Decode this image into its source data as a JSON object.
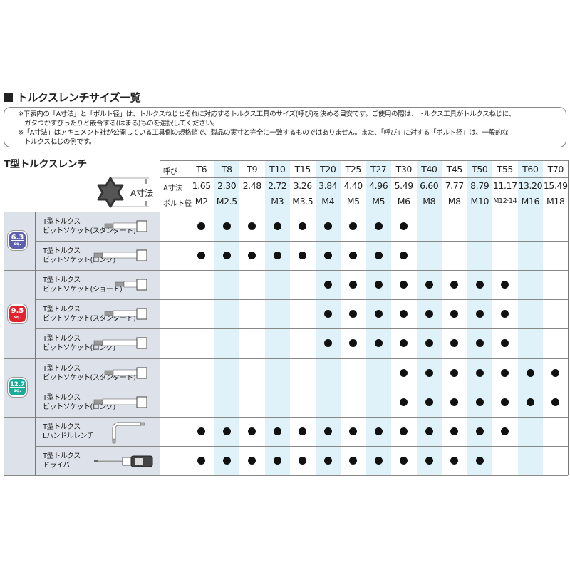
{
  "title": "トルクスレンチサイズ一覧",
  "notes": [
    "※下表内の「A寸法」と「ボルト径」は、トルクスねじとそれに対応するトルクス工具のサイズ(呼び)を決める目安です。ご使用の際は、トルクス工具がトルクスねじに、",
    "ガタつかずぴったりと嵌合する(はまる)ものを選択してください。",
    "※「A寸法」はアキュメント社が公開している工具側の規格値で、製品の実寸と完全に一致するものではありません。また、「呼び」に対する「ボルト径」は、一般的な",
    "トルクスねじの例です。"
  ],
  "subtitle": "T型トルクスレンチ",
  "diagram_label": "A寸法",
  "header": {
    "row_labels": [
      "呼び",
      "A寸法",
      "ボルト径"
    ],
    "sizes": [
      "T6",
      "T8",
      "T9",
      "T10",
      "T15",
      "T20",
      "T25",
      "T27",
      "T30",
      "T40",
      "T45",
      "T50",
      "T55",
      "T60",
      "T70"
    ],
    "a_dims": [
      "1.65",
      "2.30",
      "2.48",
      "2.72",
      "3.26",
      "3.84",
      "4.40",
      "4.96",
      "5.49",
      "6.60",
      "7.77",
      "8.79",
      "11.17",
      "13.20",
      "15.49"
    ],
    "bolts": [
      "M2",
      "M2.5",
      "–",
      "M3",
      "M3.5",
      "M4",
      "M5",
      "M5",
      "M6",
      "M8",
      "M8",
      "M10",
      "M12·14",
      "M16",
      "M18"
    ]
  },
  "groups": [
    {
      "badge": "6.3",
      "unit": "sq.",
      "color": "#5b5fae",
      "items": [
        {
          "name": [
            "T型トルクス",
            "ビットソケット(スタンダード)"
          ],
          "tool": "socket-standard",
          "avail": [
            1,
            1,
            1,
            1,
            1,
            1,
            1,
            1,
            1,
            0,
            0,
            0,
            0,
            0,
            0
          ]
        },
        {
          "name": [
            "T型トルクス",
            "ビットソケット(ロング)"
          ],
          "tool": "socket-long",
          "avail": [
            1,
            1,
            1,
            1,
            1,
            1,
            1,
            1,
            1,
            0,
            0,
            0,
            0,
            0,
            0
          ]
        }
      ]
    },
    {
      "badge": "9.5",
      "unit": "sq.",
      "color": "#e0242e",
      "items": [
        {
          "name": [
            "T型トルクス",
            "ビットソケット(ショート)"
          ],
          "tool": "socket-short",
          "avail": [
            0,
            0,
            0,
            0,
            0,
            1,
            1,
            1,
            1,
            1,
            1,
            1,
            1,
            0,
            0
          ]
        },
        {
          "name": [
            "T型トルクス",
            "ビットソケット(スタンダード)"
          ],
          "tool": "socket-standard",
          "avail": [
            0,
            0,
            0,
            0,
            0,
            1,
            1,
            1,
            1,
            1,
            1,
            1,
            1,
            0,
            0
          ]
        },
        {
          "name": [
            "T型トルクス",
            "ビットソケット(ロング)"
          ],
          "tool": "socket-long",
          "avail": [
            0,
            0,
            0,
            0,
            0,
            1,
            1,
            1,
            1,
            1,
            1,
            1,
            1,
            0,
            0
          ]
        }
      ]
    },
    {
      "badge": "12.7",
      "unit": "sq.",
      "color": "#1aab9a",
      "items": [
        {
          "name": [
            "T型トルクス",
            "ビットソケット(スタンダード)"
          ],
          "tool": "socket-standard",
          "avail": [
            0,
            0,
            0,
            0,
            0,
            0,
            0,
            0,
            1,
            1,
            1,
            1,
            1,
            1,
            1
          ]
        },
        {
          "name": [
            "T型トルクス",
            "ビットソケット(ロング)"
          ],
          "tool": "socket-long",
          "avail": [
            0,
            0,
            0,
            0,
            0,
            0,
            0,
            0,
            1,
            1,
            1,
            1,
            1,
            1,
            1
          ]
        }
      ]
    },
    {
      "badge": "",
      "unit": "",
      "color": "",
      "items": [
        {
          "name": [
            "T型トルクス",
            "Lハンドルレンチ"
          ],
          "tool": "l-wrench",
          "avail": [
            1,
            1,
            1,
            1,
            1,
            1,
            1,
            1,
            1,
            1,
            1,
            1,
            1,
            0,
            0
          ]
        },
        {
          "name": [
            "T型トルクス",
            "ドライバ"
          ],
          "tool": "screwdriver",
          "avail": [
            1,
            1,
            1,
            1,
            1,
            1,
            1,
            1,
            1,
            1,
            1,
            1,
            0,
            0,
            0
          ]
        }
      ]
    }
  ],
  "colors": {
    "column_shade": "#dff2fa",
    "row_label_bg": "#dde2ea"
  }
}
